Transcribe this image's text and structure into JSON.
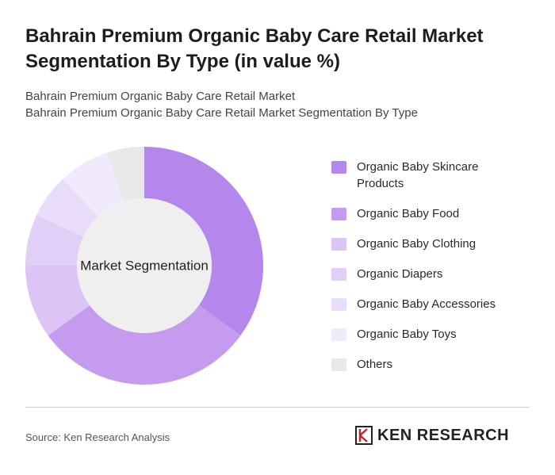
{
  "chart_data": {
    "type": "donut",
    "title": "Bahrain Premium Organic Baby Care Retail Market Segmentation By Type (in value %)",
    "subtitle": "Bahrain Premium Organic Baby Care Retail Market",
    "subtitle2": "Bahrain Premium Organic Baby Care Retail Market Segmentation By Type",
    "center_label": "Market Segmentation",
    "categories": [
      "Organic Baby Skincare Products",
      "Organic Baby Food",
      "Organic Baby Clothing",
      "Organic Diapers",
      "Organic Baby Accessories",
      "Organic Baby Toys",
      "Others"
    ],
    "values": [
      35,
      30,
      10,
      7,
      6,
      7,
      5
    ],
    "colors": [
      "#b586ec",
      "#c49bef",
      "#dcc4f6",
      "#e2cff7",
      "#e9dcf9",
      "#f1eafb",
      "#e8e8e8"
    ],
    "source": "Source: Ken Research Analysis",
    "logo": "KEN RESEARCH"
  }
}
